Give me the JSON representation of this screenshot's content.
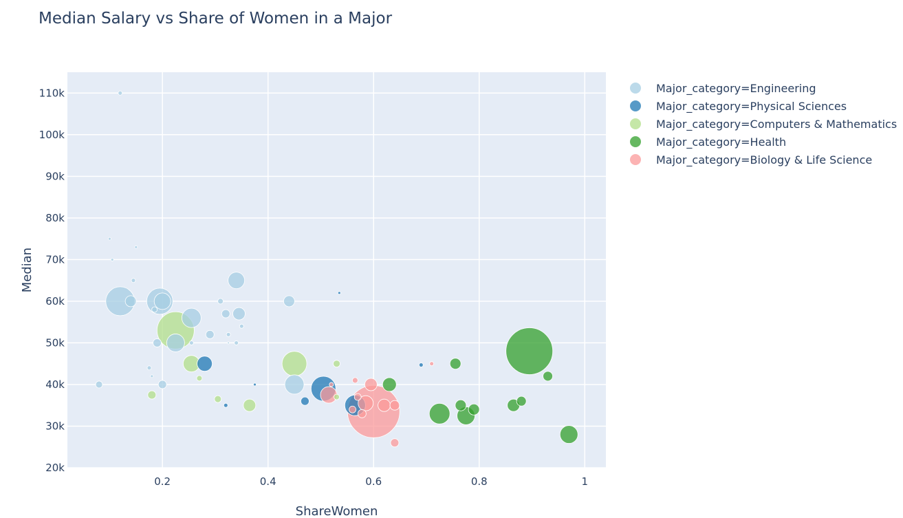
{
  "chart_data": {
    "type": "scatter",
    "title": "Median Salary vs Share of Women in a Major",
    "xlabel": "ShareWomen",
    "ylabel": "Median",
    "xlim": [
      0.02,
      1.04
    ],
    "ylim": [
      20000,
      115000
    ],
    "x_ticks": [
      {
        "v": 0.2,
        "label": "0.2"
      },
      {
        "v": 0.4,
        "label": "0.4"
      },
      {
        "v": 0.6,
        "label": "0.6"
      },
      {
        "v": 0.8,
        "label": "0.8"
      },
      {
        "v": 1.0,
        "label": "1"
      }
    ],
    "y_ticks": [
      {
        "v": 20000,
        "label": "20k"
      },
      {
        "v": 30000,
        "label": "30k"
      },
      {
        "v": 40000,
        "label": "40k"
      },
      {
        "v": 50000,
        "label": "50k"
      },
      {
        "v": 60000,
        "label": "60k"
      },
      {
        "v": 70000,
        "label": "70k"
      },
      {
        "v": 80000,
        "label": "80k"
      },
      {
        "v": 90000,
        "label": "90k"
      },
      {
        "v": 100000,
        "label": "100k"
      },
      {
        "v": 110000,
        "label": "110k"
      }
    ],
    "grid": true,
    "legend_position": "right",
    "plot_background": "#e5ecf6",
    "series": [
      {
        "name": "Major_category=Engineering",
        "color": "#a6cee3",
        "points": [
          {
            "x": 0.12,
            "y": 110000,
            "size": 3
          },
          {
            "x": 0.1,
            "y": 75000,
            "size": 2
          },
          {
            "x": 0.15,
            "y": 73000,
            "size": 2
          },
          {
            "x": 0.105,
            "y": 70000,
            "size": 2
          },
          {
            "x": 0.145,
            "y": 65000,
            "size": 3
          },
          {
            "x": 0.12,
            "y": 60000,
            "size": 21
          },
          {
            "x": 0.14,
            "y": 60000,
            "size": 8
          },
          {
            "x": 0.195,
            "y": 60000,
            "size": 19
          },
          {
            "x": 0.2,
            "y": 60000,
            "size": 12
          },
          {
            "x": 0.185,
            "y": 58000,
            "size": 4
          },
          {
            "x": 0.255,
            "y": 56000,
            "size": 14
          },
          {
            "x": 0.225,
            "y": 50000,
            "size": 13
          },
          {
            "x": 0.19,
            "y": 50000,
            "size": 6
          },
          {
            "x": 0.255,
            "y": 50000,
            "size": 3
          },
          {
            "x": 0.29,
            "y": 52000,
            "size": 6
          },
          {
            "x": 0.31,
            "y": 60000,
            "size": 4
          },
          {
            "x": 0.34,
            "y": 65000,
            "size": 12
          },
          {
            "x": 0.32,
            "y": 57000,
            "size": 6
          },
          {
            "x": 0.345,
            "y": 57000,
            "size": 9
          },
          {
            "x": 0.325,
            "y": 52000,
            "size": 3
          },
          {
            "x": 0.35,
            "y": 54000,
            "size": 3
          },
          {
            "x": 0.34,
            "y": 50000,
            "size": 3
          },
          {
            "x": 0.325,
            "y": 50000,
            "size": 1
          },
          {
            "x": 0.44,
            "y": 60000,
            "size": 8
          },
          {
            "x": 0.45,
            "y": 40000,
            "size": 14
          },
          {
            "x": 0.175,
            "y": 44000,
            "size": 3
          },
          {
            "x": 0.18,
            "y": 42000,
            "size": 2
          },
          {
            "x": 0.2,
            "y": 40000,
            "size": 6
          },
          {
            "x": 0.08,
            "y": 40000,
            "size": 5
          }
        ]
      },
      {
        "name": "Major_category=Physical Sciences",
        "color": "#1f78b4",
        "points": [
          {
            "x": 0.535,
            "y": 62000,
            "size": 2
          },
          {
            "x": 0.28,
            "y": 45000,
            "size": 11
          },
          {
            "x": 0.375,
            "y": 40000,
            "size": 2
          },
          {
            "x": 0.32,
            "y": 35000,
            "size": 3
          },
          {
            "x": 0.47,
            "y": 36000,
            "size": 6
          },
          {
            "x": 0.505,
            "y": 39000,
            "size": 18
          },
          {
            "x": 0.565,
            "y": 35000,
            "size": 15
          },
          {
            "x": 0.69,
            "y": 44700,
            "size": 3
          }
        ]
      },
      {
        "name": "Major_category=Computers & Mathematics",
        "color": "#b2df8a",
        "points": [
          {
            "x": 0.225,
            "y": 53000,
            "size": 27
          },
          {
            "x": 0.255,
            "y": 45000,
            "size": 12
          },
          {
            "x": 0.27,
            "y": 41500,
            "size": 4
          },
          {
            "x": 0.18,
            "y": 37500,
            "size": 6
          },
          {
            "x": 0.305,
            "y": 36500,
            "size": 5
          },
          {
            "x": 0.365,
            "y": 35000,
            "size": 9
          },
          {
            "x": 0.45,
            "y": 45000,
            "size": 18
          },
          {
            "x": 0.53,
            "y": 45000,
            "size": 5
          },
          {
            "x": 0.53,
            "y": 37000,
            "size": 4
          }
        ]
      },
      {
        "name": "Major_category=Health",
        "color": "#33a02c",
        "points": [
          {
            "x": 0.895,
            "y": 48000,
            "size": 34
          },
          {
            "x": 0.755,
            "y": 45000,
            "size": 8
          },
          {
            "x": 0.93,
            "y": 42000,
            "size": 7
          },
          {
            "x": 0.63,
            "y": 40000,
            "size": 10
          },
          {
            "x": 0.765,
            "y": 35000,
            "size": 8
          },
          {
            "x": 0.88,
            "y": 36000,
            "size": 7
          },
          {
            "x": 0.865,
            "y": 35000,
            "size": 9
          },
          {
            "x": 0.79,
            "y": 34000,
            "size": 8
          },
          {
            "x": 0.725,
            "y": 33000,
            "size": 15
          },
          {
            "x": 0.775,
            "y": 32500,
            "size": 13
          },
          {
            "x": 0.97,
            "y": 28000,
            "size": 13
          }
        ]
      },
      {
        "name": "Major_category=Biology & Life Science",
        "color": "#fb9a99",
        "points": [
          {
            "x": 0.71,
            "y": 45000,
            "size": 3
          },
          {
            "x": 0.565,
            "y": 41000,
            "size": 4
          },
          {
            "x": 0.595,
            "y": 40000,
            "size": 9
          },
          {
            "x": 0.52,
            "y": 40000,
            "size": 3
          },
          {
            "x": 0.515,
            "y": 37500,
            "size": 12
          },
          {
            "x": 0.585,
            "y": 35500,
            "size": 11
          },
          {
            "x": 0.62,
            "y": 35000,
            "size": 9
          },
          {
            "x": 0.64,
            "y": 35000,
            "size": 7
          },
          {
            "x": 0.57,
            "y": 37000,
            "size": 5
          },
          {
            "x": 0.578,
            "y": 33000,
            "size": 6
          },
          {
            "x": 0.56,
            "y": 34000,
            "size": 5
          },
          {
            "x": 0.6,
            "y": 33500,
            "size": 38
          },
          {
            "x": 0.64,
            "y": 26000,
            "size": 6
          }
        ]
      }
    ]
  }
}
